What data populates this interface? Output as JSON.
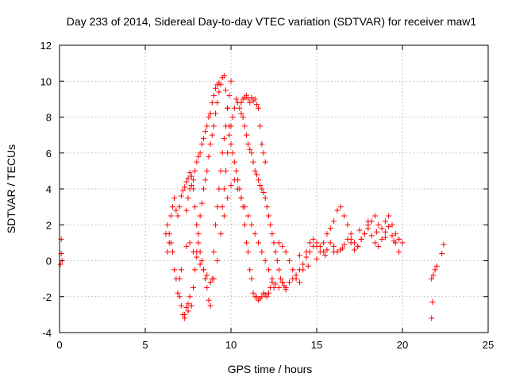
{
  "chart_data": {
    "type": "scatter",
    "title": "Day 233 of 2014, Sidereal Day-to-day VTEC variation (SDTVAR) for receiver maw1",
    "xlabel": "GPS time / hours",
    "ylabel": "SDTVAR / TECUs",
    "xlim": [
      0,
      25
    ],
    "ylim": [
      -4,
      12
    ],
    "xticks": [
      0,
      5,
      10,
      15,
      20,
      25
    ],
    "yticks": [
      -4,
      -2,
      0,
      2,
      4,
      6,
      8,
      10,
      12
    ],
    "grid": true,
    "marker": "+",
    "marker_color": "#ff0000",
    "series": [
      {
        "name": "maw1",
        "x": [
          0.05,
          0.1,
          0.1,
          0.15,
          6.2,
          6.3,
          6.4,
          6.5,
          6.6,
          6.7,
          6.8,
          6.9,
          7.0,
          7.0,
          7.1,
          7.1,
          7.2,
          7.3,
          7.3,
          7.4,
          7.5,
          7.5,
          7.6,
          7.7,
          7.8,
          7.9,
          8.0,
          8.1,
          8.2,
          8.3,
          8.4,
          8.5,
          8.6,
          8.7,
          8.8,
          8.9,
          9.0,
          9.1,
          9.2,
          9.3,
          9.4,
          9.5,
          9.6,
          9.7,
          9.8,
          9.9,
          10.0,
          10.1,
          10.2,
          10.3,
          10.4,
          10.5,
          10.6,
          10.7,
          10.8,
          10.9,
          11.0,
          11.1,
          11.2,
          11.3,
          11.4,
          11.5,
          11.6,
          11.7,
          11.8,
          11.9,
          12.0,
          12.1,
          12.2,
          12.3,
          12.4,
          12.5,
          6.3,
          6.4,
          6.5,
          6.6,
          6.7,
          6.8,
          6.9,
          7.0,
          7.1,
          7.2,
          7.3,
          7.4,
          7.5,
          7.6,
          7.7,
          7.8,
          7.9,
          8.0,
          8.1,
          8.2,
          8.3,
          8.4,
          8.5,
          8.6,
          8.7,
          8.8,
          8.9,
          9.0,
          9.1,
          9.2,
          9.3,
          9.4,
          9.5,
          9.6,
          9.7,
          9.8,
          9.9,
          10.0,
          7.4,
          7.5,
          7.6,
          7.7,
          7.8,
          7.9,
          8.0,
          8.1,
          8.2,
          8.3,
          8.4,
          8.5,
          8.6,
          8.7,
          8.8,
          8.9,
          9.0,
          9.1,
          9.2,
          9.3,
          7.4,
          7.6,
          7.8,
          8.0,
          8.2,
          8.4,
          8.6,
          8.8,
          9.0,
          9.2,
          9.4,
          9.6,
          9.8,
          10.0,
          10.2,
          10.4,
          10.6,
          10.8,
          11.0,
          11.2,
          11.4,
          11.6,
          11.8,
          12.0,
          12.2,
          12.4,
          12.6,
          12.8,
          13.0,
          9.5,
          9.6,
          9.7,
          9.8,
          9.9,
          10.0,
          10.1,
          10.2,
          10.3,
          10.4,
          10.5,
          10.6,
          10.7,
          10.8,
          10.9,
          11.0,
          11.1,
          11.2,
          11.3,
          11.4,
          11.5,
          11.6,
          11.7,
          11.8,
          11.9,
          12.0,
          12.1,
          12.2,
          12.3,
          12.4,
          12.5,
          12.6,
          12.7,
          12.8,
          12.9,
          13.0,
          13.1,
          13.2,
          10.6,
          10.7,
          10.8,
          10.9,
          11.0,
          11.1,
          11.2,
          11.3,
          11.4,
          11.5,
          11.6,
          11.7,
          11.8,
          11.9,
          12.0,
          12.8,
          13.0,
          13.2,
          13.4,
          13.6,
          13.8,
          14.0,
          14.2,
          14.4,
          14.6,
          14.8,
          15.0,
          15.2,
          15.4,
          15.6,
          15.8,
          16.0,
          16.2,
          16.4,
          16.6,
          16.8,
          17.0,
          17.2,
          17.4,
          17.6,
          17.8,
          18.0,
          18.2,
          18.4,
          18.6,
          18.8,
          19.0,
          19.2,
          19.4,
          19.6,
          19.8,
          20.0,
          13.2,
          13.4,
          13.6,
          13.8,
          14.0,
          14.2,
          14.4,
          14.6,
          14.8,
          15.0,
          15.2,
          15.4,
          15.6,
          15.8,
          16.0,
          16.2,
          16.4,
          16.6,
          16.8,
          17.0,
          17.2,
          17.4,
          17.6,
          17.8,
          18.0,
          18.2,
          18.4,
          18.6,
          18.8,
          19.0,
          19.2,
          19.4,
          19.6,
          19.8,
          14.0,
          14.5,
          15.0,
          15.5,
          16.0,
          16.5,
          17.0,
          17.5,
          18.0,
          18.5,
          19.0,
          19.5,
          21.7,
          21.8,
          21.9,
          22.0,
          21.75,
          21.7,
          22.3,
          22.4
        ],
        "y": [
          -0.2,
          0.4,
          1.2,
          0.0,
          1.5,
          2.0,
          1.5,
          1.0,
          0.5,
          -0.5,
          -1.0,
          -1.8,
          -2.0,
          -1.0,
          -0.5,
          -2.5,
          -3.0,
          -3.2,
          -3.0,
          -2.6,
          -2.8,
          -2.4,
          -2.0,
          -2.5,
          -1.5,
          -0.5,
          0.5,
          1.5,
          2.5,
          3.2,
          4.0,
          4.5,
          5.0,
          5.8,
          6.5,
          7.0,
          7.5,
          8.2,
          8.8,
          9.4,
          9.8,
          10.2,
          10.3,
          9.5,
          8.5,
          7.5,
          6.5,
          6.0,
          5.5,
          5.0,
          4.5,
          4.0,
          3.5,
          3.0,
          2.0,
          1.0,
          0.5,
          -0.5,
          -1.0,
          -1.8,
          -2.0,
          -2.0,
          -2.2,
          -2.1,
          -2.0,
          -1.8,
          -1.9,
          -2.0,
          -1.8,
          -1.5,
          -1.2,
          -1.5,
          0.5,
          1.0,
          2.5,
          3.0,
          3.5,
          2.8,
          2.5,
          3.0,
          3.6,
          3.9,
          4.1,
          4.4,
          4.6,
          4.9,
          4.7,
          4.0,
          3.0,
          2.0,
          1.0,
          0.5,
          0.0,
          -0.5,
          -1.0,
          -1.5,
          -2.2,
          -2.5,
          -1.0,
          0.5,
          2.0,
          3.0,
          4.0,
          5.0,
          6.0,
          6.8,
          7.5,
          8.5,
          9.2,
          10.0,
          2.8,
          3.5,
          4.0,
          4.2,
          4.5,
          5.0,
          5.5,
          5.8,
          6.0,
          6.5,
          6.8,
          7.2,
          7.5,
          8.0,
          8.2,
          8.8,
          9.2,
          9.6,
          9.8,
          9.9,
          0.8,
          1.0,
          0.5,
          0.2,
          -0.2,
          -0.5,
          -0.8,
          -1.2,
          -1.0,
          0.0,
          1.5,
          2.5,
          3.5,
          4.2,
          4.5,
          4.0,
          3.5,
          3.0,
          2.5,
          2.0,
          1.5,
          1.0,
          0.5,
          0.0,
          -0.5,
          -1.0,
          -1.3,
          -1.5,
          -1.2,
          3.0,
          4.0,
          5.0,
          6.0,
          7.0,
          7.5,
          8.0,
          8.5,
          9.0,
          8.8,
          8.5,
          8.2,
          8.0,
          7.5,
          7.0,
          6.5,
          6.2,
          6.0,
          5.5,
          5.0,
          4.8,
          4.5,
          4.2,
          4.0,
          3.8,
          3.5,
          3.0,
          2.5,
          2.0,
          1.5,
          1.0,
          0.5,
          0.0,
          -0.5,
          -1.0,
          -1.2,
          -1.4,
          -1.6,
          8.8,
          9.0,
          9.1,
          9.2,
          9.0,
          8.8,
          9.1,
          8.9,
          9.0,
          8.7,
          8.5,
          7.5,
          6.5,
          6.0,
          5.5,
          1.0,
          0.8,
          0.5,
          0.0,
          -0.5,
          -1.0,
          -1.2,
          -0.5,
          0.5,
          1.0,
          1.2,
          0.8,
          0.5,
          1.0,
          1.5,
          1.8,
          2.2,
          2.8,
          3.0,
          2.5,
          2.0,
          1.5,
          1.0,
          0.8,
          1.2,
          1.5,
          2.0,
          2.2,
          2.5,
          2.0,
          1.8,
          2.2,
          2.5,
          2.0,
          1.5,
          1.2,
          1.0,
          -1.5,
          -1.2,
          -1.0,
          -0.8,
          -0.5,
          -0.2,
          0.2,
          0.5,
          0.8,
          1.0,
          0.8,
          0.5,
          0.6,
          1.0,
          0.8,
          0.5,
          0.6,
          0.9,
          1.2,
          1.0,
          0.6,
          0.8,
          1.2,
          1.5,
          1.8,
          1.4,
          1.0,
          0.8,
          1.2,
          1.6,
          1.9,
          1.4,
          1.0,
          0.5,
          0.3,
          -0.3,
          0.1,
          0.3,
          0.5,
          0.7,
          1.2,
          1.7,
          2.2,
          1.6,
          1.3,
          1.1,
          -1.0,
          -0.8,
          -0.5,
          -0.3,
          -2.3,
          -3.2,
          0.4,
          0.9
        ]
      }
    ]
  }
}
